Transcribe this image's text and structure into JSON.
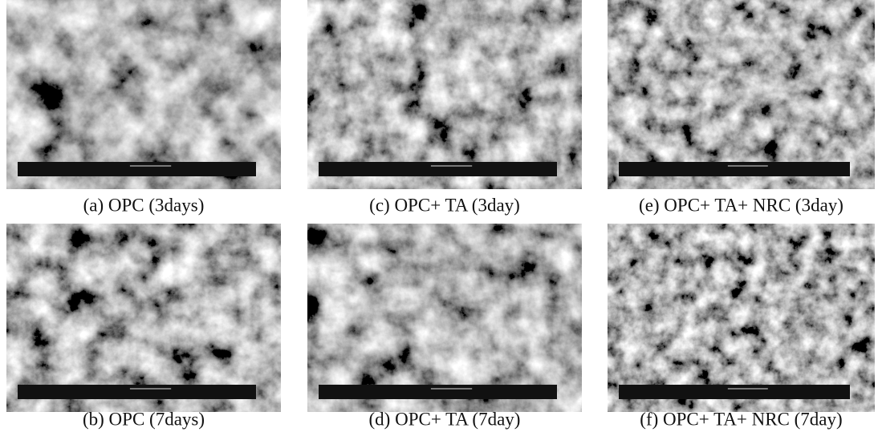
{
  "figure": {
    "panels": [
      {
        "caption": "(a) OPC (3days)"
      },
      {
        "caption": "(c) OPC+ TA (3day)"
      },
      {
        "caption": "(e) OPC+ TA+ NRC (3day)"
      },
      {
        "caption": "(b) OPC (7days)"
      },
      {
        "caption": "(d) OPC+ TA (7day)"
      },
      {
        "caption": "(f) OPC+ TA+ NRC (7day)"
      }
    ]
  }
}
